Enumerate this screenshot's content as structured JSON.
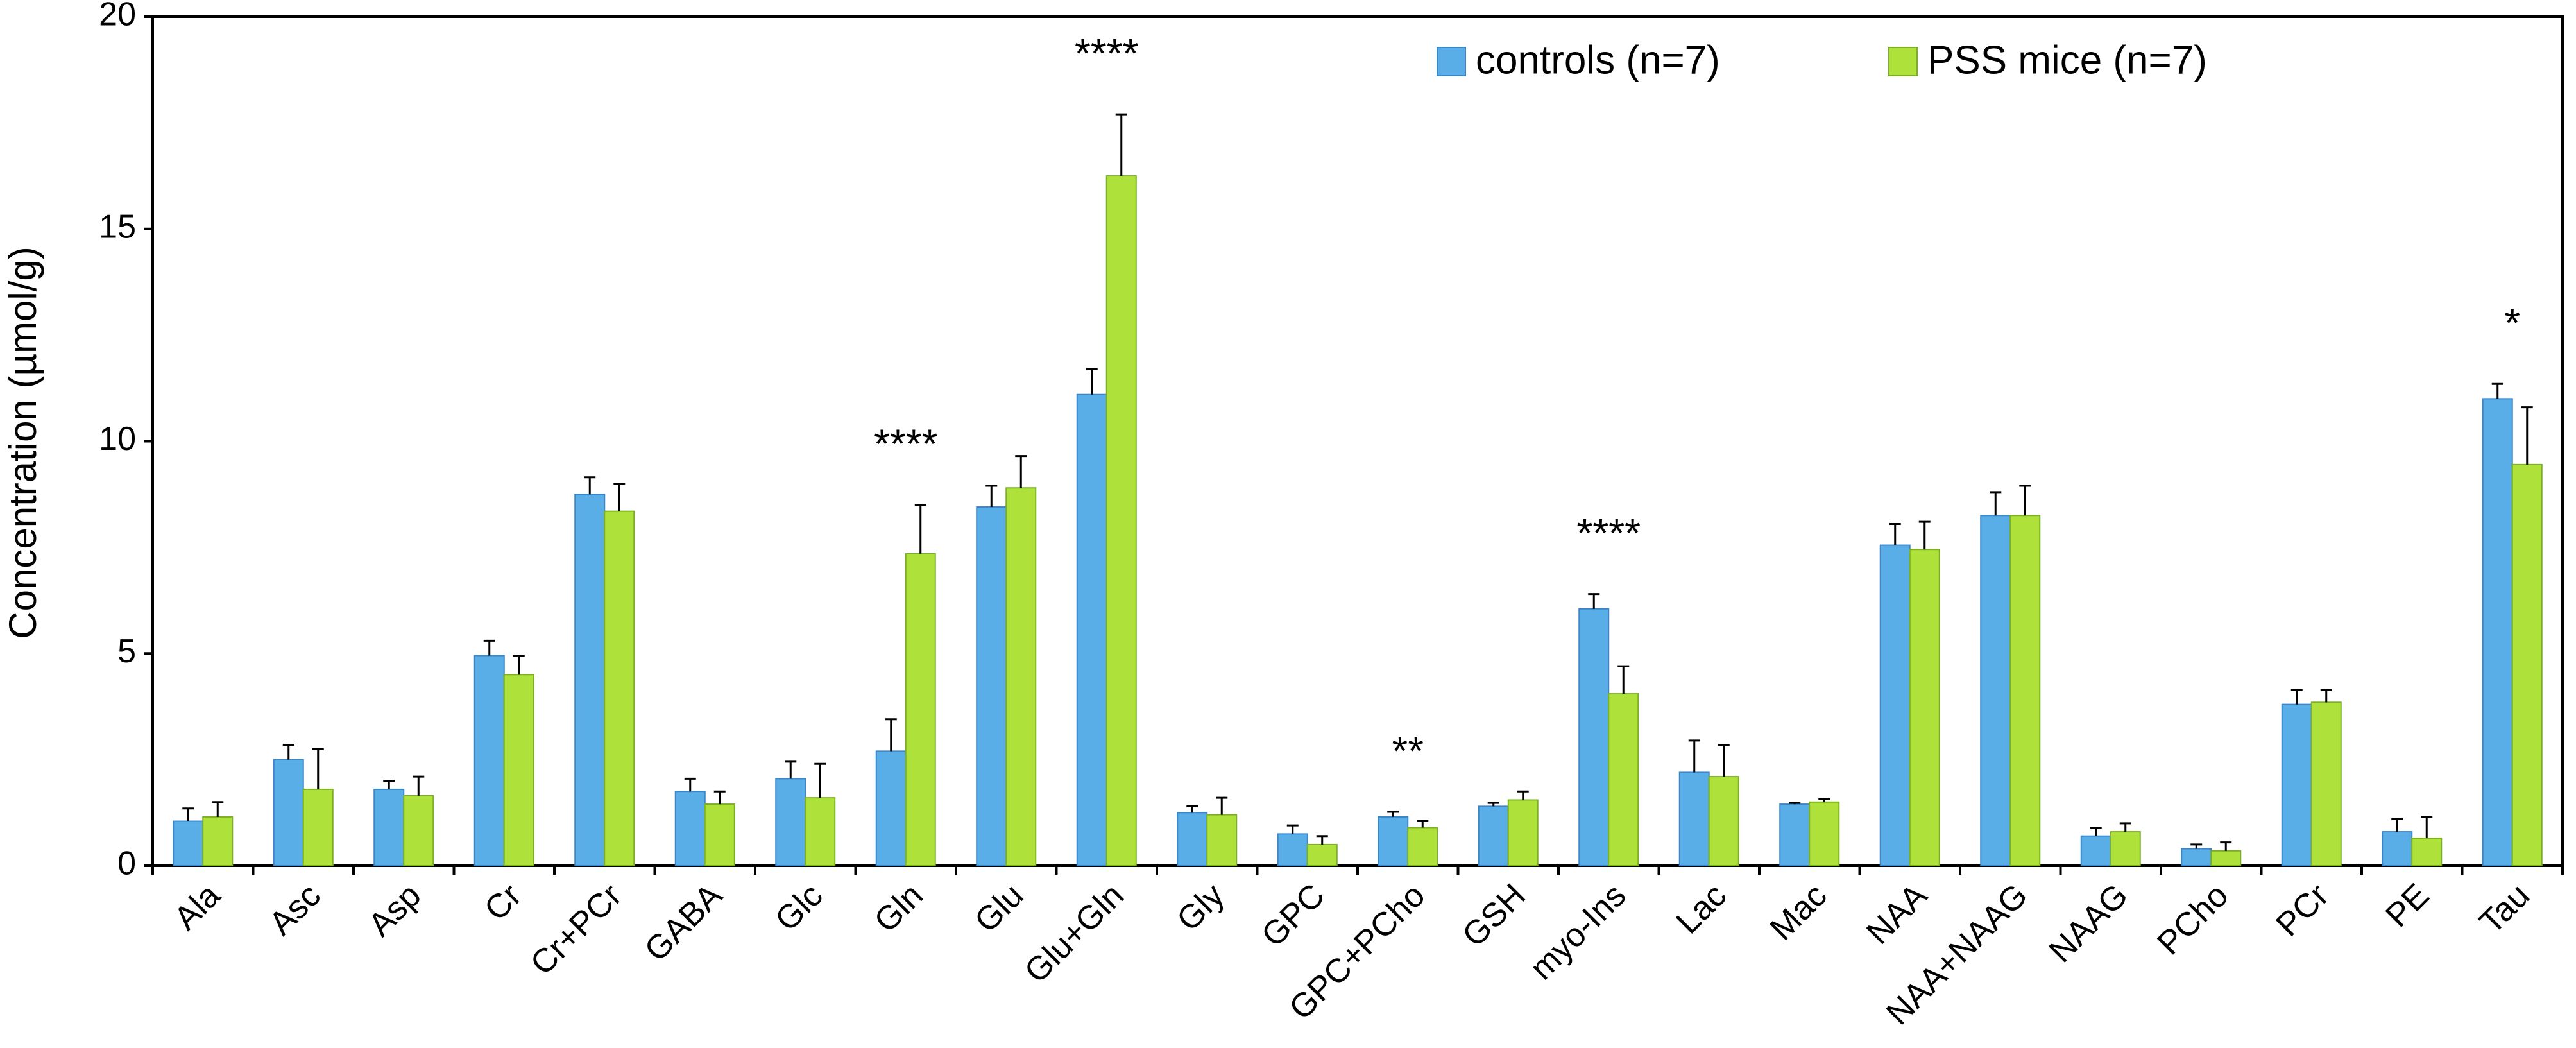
{
  "chart_data": {
    "type": "bar",
    "y_label": "Concentration (µmol/g)",
    "categories": [
      "Ala",
      "Asc",
      "Asp",
      "Cr",
      "Cr+PCr",
      "GABA",
      "Glc",
      "Gln",
      "Glu",
      "Glu+Gln",
      "Gly",
      "GPC",
      "GPC+PCho",
      "GSH",
      "myo-Ins",
      "Lac",
      "Mac",
      "NAA",
      "NAA+NAAG",
      "NAAG",
      "PCho",
      "PCr",
      "PE",
      "Tau"
    ],
    "series": [
      {
        "name": "controls (n=7)",
        "color": "#5aaee8",
        "values": [
          1.05,
          2.5,
          1.8,
          4.95,
          8.75,
          1.75,
          2.05,
          2.7,
          8.45,
          11.1,
          1.25,
          0.75,
          1.15,
          1.4,
          6.05,
          2.2,
          1.45,
          7.55,
          8.25,
          0.7,
          0.4,
          3.8,
          0.8,
          11.0
        ],
        "errors": [
          0.3,
          0.35,
          0.2,
          0.35,
          0.4,
          0.3,
          0.4,
          0.75,
          0.5,
          0.6,
          0.15,
          0.2,
          0.12,
          0.08,
          0.35,
          0.75,
          0.03,
          0.5,
          0.55,
          0.2,
          0.1,
          0.35,
          0.3,
          0.35
        ]
      },
      {
        "name": "PSS mice (n=7)",
        "color": "#aee23a",
        "values": [
          1.15,
          1.8,
          1.65,
          4.5,
          8.35,
          1.45,
          1.6,
          7.35,
          8.9,
          16.25,
          1.2,
          0.5,
          0.9,
          1.55,
          4.05,
          2.1,
          1.5,
          7.45,
          8.25,
          0.8,
          0.35,
          3.85,
          0.65,
          9.45
        ],
        "errors": [
          0.35,
          0.95,
          0.45,
          0.45,
          0.65,
          0.3,
          0.8,
          1.15,
          0.75,
          1.45,
          0.4,
          0.2,
          0.15,
          0.2,
          0.65,
          0.75,
          0.08,
          0.65,
          0.7,
          0.2,
          0.2,
          0.3,
          0.5,
          1.35
        ]
      }
    ],
    "significance": [
      null,
      null,
      null,
      null,
      null,
      null,
      null,
      "****",
      null,
      "****",
      null,
      null,
      "**",
      null,
      "****",
      null,
      null,
      null,
      null,
      null,
      null,
      null,
      null,
      "*"
    ],
    "ylim": [
      0,
      20
    ],
    "yticks": [
      0,
      5,
      10,
      15,
      20
    ]
  }
}
